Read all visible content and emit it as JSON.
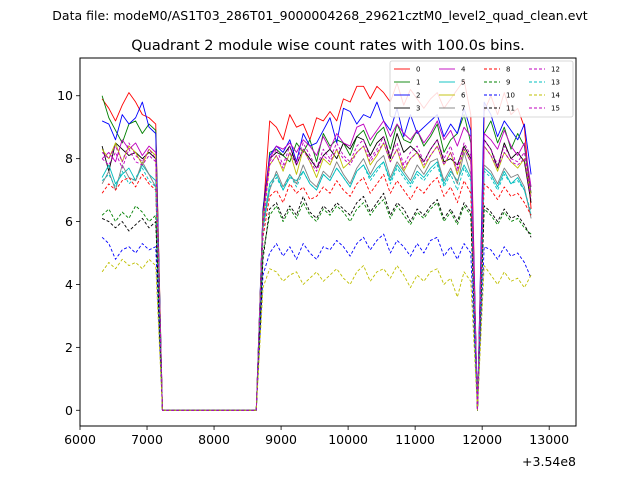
{
  "chart_data": {
    "type": "line",
    "suptitle": "Data file: modeM0/AS1T03_286T01_9000004268_29621cztM0_level2_quad_clean.evt",
    "title": "Quadrant 2 module wise count rates with 100.0s bins.",
    "xlabel": "",
    "ylabel": "",
    "x_offset_label": "+3.54e8",
    "xlim": [
      6000,
      13400
    ],
    "ylim": [
      -0.5,
      11.2
    ],
    "xticks": [
      6000,
      7000,
      8000,
      9000,
      10000,
      11000,
      12000,
      13000
    ],
    "yticks": [
      0,
      2,
      4,
      6,
      8,
      10
    ],
    "xtick_labels": [
      "6000",
      "7000",
      "8000",
      "9000",
      "10000",
      "11000",
      "12000",
      "13000"
    ],
    "ytick_labels": [
      "0",
      "2",
      "4",
      "6",
      "8",
      "10"
    ],
    "legend_placement": "top-right",
    "legend_columns": 4,
    "grid": false,
    "x_start": 6330,
    "x_step": 100,
    "series": [
      {
        "name": "0",
        "color": "#ff0000",
        "style": "solid",
        "values": [
          9.9,
          9.6,
          9.2,
          9.7,
          10.1,
          9.8,
          9.4,
          9.3,
          9.1,
          0,
          0,
          0,
          0,
          0,
          0,
          0,
          0,
          0,
          0,
          0,
          0,
          0,
          0,
          0,
          6.2,
          9.2,
          9.0,
          8.6,
          9.4,
          9.0,
          9.1,
          8.6,
          9.3,
          9.2,
          9.5,
          9.2,
          9.9,
          9.8,
          10.3,
          10.3,
          9.9,
          10.3,
          10.1,
          9.8,
          10.4,
          9.7,
          10.2,
          9.9,
          9.6,
          9.9,
          10.1,
          9.6,
          9.9,
          10.2,
          10.5,
          9.4,
          0,
          9.5,
          10.0,
          9.4,
          10.1,
          9.4,
          9.6,
          9.0,
          6.4
        ]
      },
      {
        "name": "1",
        "color": "#008000",
        "style": "solid",
        "values": [
          10.0,
          9.3,
          8.9,
          8.5,
          9.1,
          9.2,
          8.8,
          9.1,
          8.9,
          0,
          0,
          0,
          0,
          0,
          0,
          0,
          0,
          0,
          0,
          0,
          0,
          0,
          0,
          0,
          6.0,
          8.2,
          8.3,
          8.1,
          7.9,
          8.5,
          8.2,
          8.6,
          7.9,
          8.8,
          8.4,
          8.6,
          8.5,
          8.1,
          8.7,
          8.9,
          8.4,
          8.8,
          9.0,
          8.3,
          9.1,
          8.6,
          8.5,
          8.9,
          8.4,
          8.7,
          9.1,
          8.2,
          8.6,
          8.8,
          9.4,
          8.5,
          0,
          8.8,
          9.2,
          8.5,
          9.0,
          8.3,
          8.8,
          8.4,
          6.9
        ]
      },
      {
        "name": "2",
        "color": "#0000ff",
        "style": "solid",
        "values": [
          9.2,
          9.1,
          8.6,
          9.4,
          9.1,
          9.3,
          9.8,
          9.0,
          8.8,
          0,
          0,
          0,
          0,
          0,
          0,
          0,
          0,
          0,
          0,
          0,
          0,
          0,
          0,
          0,
          6.4,
          8.1,
          8.4,
          8.2,
          8.6,
          7.9,
          8.8,
          8.4,
          8.5,
          8.9,
          9.3,
          8.5,
          9.6,
          9.5,
          9.1,
          9.4,
          9.3,
          9.8,
          9.2,
          8.9,
          9.6,
          8.7,
          9.4,
          8.8,
          9.0,
          9.2,
          9.4,
          8.7,
          9.1,
          8.8,
          9.6,
          8.9,
          0,
          9.8,
          9.4,
          8.7,
          9.2,
          8.9,
          8.6,
          9.1,
          7.5
        ]
      },
      {
        "name": "3",
        "color": "#000000",
        "style": "solid",
        "values": [
          8.4,
          7.6,
          8.5,
          8.3,
          8.1,
          8.2,
          8.0,
          8.2,
          8.0,
          0,
          0,
          0,
          0,
          0,
          0,
          0,
          0,
          0,
          0,
          0,
          0,
          0,
          0,
          0,
          6.3,
          8.0,
          8.2,
          8.1,
          8.4,
          7.8,
          8.3,
          8.0,
          7.7,
          8.1,
          8.3,
          8.0,
          8.5,
          8.3,
          8.7,
          8.6,
          8.1,
          8.5,
          8.7,
          8.0,
          8.8,
          8.2,
          8.4,
          8.2,
          7.9,
          8.3,
          8.6,
          7.9,
          8.0,
          7.8,
          8.4,
          8.0,
          0,
          8.6,
          8.3,
          7.7,
          8.5,
          8.0,
          8.2,
          7.9,
          6.6
        ]
      },
      {
        "name": "4",
        "color": "#bf00bf",
        "style": "solid",
        "values": [
          8.0,
          8.2,
          7.9,
          8.6,
          8.3,
          8.5,
          8.1,
          8.4,
          8.2,
          0,
          0,
          0,
          0,
          0,
          0,
          0,
          0,
          0,
          0,
          0,
          0,
          0,
          0,
          0,
          6.2,
          8.0,
          8.4,
          8.3,
          8.5,
          8.2,
          8.6,
          8.4,
          8.1,
          8.7,
          8.3,
          8.8,
          8.5,
          8.4,
          9.0,
          9.1,
          8.6,
          8.9,
          9.2,
          8.7,
          9.1,
          8.8,
          8.6,
          8.9,
          8.5,
          8.8,
          9.2,
          8.6,
          8.9,
          8.4,
          9.0,
          8.7,
          0,
          8.8,
          8.6,
          8.3,
          8.9,
          8.4,
          8.1,
          8.5,
          7.1
        ]
      },
      {
        "name": "5",
        "color": "#00bfbf",
        "style": "solid",
        "values": [
          7.4,
          7.8,
          7.2,
          7.5,
          7.7,
          7.3,
          7.8,
          7.5,
          7.3,
          0,
          0,
          0,
          0,
          0,
          0,
          0,
          0,
          0,
          0,
          0,
          0,
          0,
          0,
          0,
          5.9,
          7.2,
          7.5,
          7.0,
          7.4,
          7.3,
          7.6,
          7.2,
          7.0,
          7.5,
          7.3,
          7.7,
          7.4,
          7.1,
          7.6,
          7.8,
          7.4,
          7.7,
          7.9,
          7.3,
          7.8,
          7.5,
          7.2,
          7.6,
          7.4,
          7.7,
          7.9,
          7.2,
          7.6,
          7.3,
          7.8,
          7.4,
          0,
          7.7,
          7.5,
          7.1,
          7.6,
          7.2,
          7.4,
          7.0,
          6.2
        ]
      },
      {
        "name": "6",
        "color": "#bfbf00",
        "style": "solid",
        "values": [
          8.3,
          8.0,
          8.5,
          7.9,
          8.4,
          8.2,
          7.8,
          8.3,
          8.1,
          0,
          0,
          0,
          0,
          0,
          0,
          0,
          0,
          0,
          0,
          0,
          0,
          0,
          0,
          0,
          6.1,
          7.8,
          8.1,
          7.6,
          8.2,
          7.5,
          8.3,
          7.9,
          7.4,
          8.0,
          7.8,
          8.3,
          7.7,
          7.9,
          8.2,
          8.4,
          7.8,
          8.1,
          8.5,
          7.9,
          8.3,
          7.6,
          8.0,
          8.2,
          7.7,
          8.1,
          8.4,
          7.8,
          8.2,
          7.5,
          8.3,
          7.9,
          0,
          8.4,
          8.1,
          7.6,
          8.2,
          7.9,
          7.7,
          8.0,
          6.8
        ]
      },
      {
        "name": "7",
        "color": "#808080",
        "style": "solid",
        "values": [
          7.2,
          7.6,
          7.0,
          7.8,
          7.4,
          7.3,
          7.9,
          7.5,
          7.1,
          0,
          0,
          0,
          0,
          0,
          0,
          0,
          0,
          0,
          0,
          0,
          0,
          0,
          0,
          0,
          5.8,
          7.0,
          7.6,
          7.1,
          7.5,
          7.2,
          7.8,
          7.3,
          7.1,
          7.6,
          7.4,
          7.9,
          7.5,
          7.2,
          7.7,
          8.0,
          7.5,
          7.9,
          8.1,
          7.4,
          7.9,
          7.6,
          7.3,
          7.8,
          7.5,
          7.9,
          8.0,
          7.3,
          7.7,
          7.2,
          8.2,
          7.5,
          0,
          7.8,
          7.6,
          7.2,
          7.7,
          7.4,
          7.5,
          7.1,
          6.1
        ]
      },
      {
        "name": "8",
        "color": "#ff0000",
        "style": "dashed",
        "values": [
          6.9,
          7.2,
          7.0,
          7.3,
          7.4,
          7.1,
          7.5,
          7.2,
          7.0,
          0,
          0,
          0,
          0,
          0,
          0,
          0,
          0,
          0,
          0,
          0,
          0,
          0,
          0,
          0,
          5.5,
          6.8,
          7.0,
          6.6,
          7.2,
          6.9,
          7.1,
          6.7,
          6.8,
          7.1,
          6.9,
          7.3,
          7.0,
          6.8,
          7.2,
          7.4,
          6.9,
          7.2,
          7.5,
          6.9,
          7.3,
          7.0,
          6.7,
          7.1,
          6.9,
          7.2,
          7.4,
          6.8,
          7.1,
          6.6,
          7.3,
          6.9,
          0,
          7.2,
          7.0,
          6.7,
          7.1,
          6.8,
          6.9,
          6.6,
          6.2
        ]
      },
      {
        "name": "9",
        "color": "#008000",
        "style": "dashed",
        "values": [
          6.2,
          6.4,
          6.0,
          6.3,
          6.1,
          6.5,
          6.3,
          6.0,
          6.2,
          0,
          0,
          0,
          0,
          0,
          0,
          0,
          0,
          0,
          0,
          0,
          0,
          0,
          0,
          0,
          5.0,
          6.2,
          6.5,
          6.0,
          6.4,
          6.1,
          6.6,
          6.2,
          6.0,
          6.4,
          6.2,
          6.5,
          6.3,
          6.0,
          6.4,
          6.6,
          6.2,
          6.5,
          6.7,
          6.1,
          6.5,
          6.2,
          5.9,
          6.3,
          6.1,
          6.4,
          6.6,
          6.0,
          6.3,
          5.9,
          6.5,
          6.2,
          0,
          6.4,
          6.2,
          5.9,
          6.3,
          6.0,
          6.1,
          5.8,
          5.6
        ]
      },
      {
        "name": "10",
        "color": "#0000ff",
        "style": "dashed",
        "values": [
          5.5,
          5.3,
          4.8,
          5.1,
          5.2,
          5.0,
          5.3,
          5.1,
          5.2,
          0,
          0,
          0,
          0,
          0,
          0,
          0,
          0,
          0,
          0,
          0,
          0,
          0,
          0,
          0,
          4.3,
          5.0,
          5.3,
          4.9,
          5.2,
          4.8,
          5.3,
          5.0,
          4.8,
          5.2,
          5.1,
          5.4,
          5.2,
          4.9,
          5.3,
          5.5,
          5.1,
          5.4,
          5.6,
          5.0,
          5.4,
          5.2,
          4.9,
          5.3,
          5.0,
          5.4,
          5.5,
          4.9,
          5.2,
          4.8,
          5.3,
          5.0,
          0,
          5.2,
          5.1,
          4.8,
          5.2,
          4.9,
          5.0,
          4.7,
          4.2
        ]
      },
      {
        "name": "11",
        "color": "#000000",
        "style": "dashed",
        "values": [
          6.1,
          6.0,
          5.8,
          6.0,
          5.7,
          5.9,
          6.1,
          5.8,
          6.0,
          0,
          0,
          0,
          0,
          0,
          0,
          0,
          0,
          0,
          0,
          0,
          0,
          0,
          0,
          0,
          4.8,
          6.4,
          6.6,
          6.1,
          6.5,
          6.2,
          6.8,
          6.3,
          6.1,
          6.5,
          6.3,
          6.6,
          6.4,
          6.2,
          6.6,
          6.8,
          6.3,
          6.6,
          6.9,
          6.2,
          6.6,
          6.4,
          6.0,
          6.4,
          6.2,
          6.5,
          6.7,
          6.1,
          6.4,
          6.0,
          6.6,
          6.3,
          0,
          6.5,
          6.3,
          6.0,
          6.4,
          6.1,
          6.2,
          5.9,
          5.5
        ]
      },
      {
        "name": "12",
        "color": "#bf00bf",
        "style": "dashed",
        "values": [
          8.2,
          8.0,
          8.4,
          7.9,
          8.5,
          8.1,
          7.9,
          8.3,
          8.0,
          0,
          0,
          0,
          0,
          0,
          0,
          0,
          0,
          0,
          0,
          0,
          0,
          0,
          0,
          0,
          6.0,
          7.9,
          8.3,
          7.8,
          8.4,
          7.9,
          8.5,
          8.1,
          7.7,
          8.3,
          8.0,
          8.5,
          8.1,
          7.9,
          8.4,
          8.6,
          8.0,
          8.3,
          8.7,
          8.1,
          8.5,
          7.8,
          8.2,
          8.4,
          7.9,
          8.3,
          8.6,
          8.0,
          8.4,
          7.7,
          8.5,
          8.1,
          0,
          8.6,
          8.3,
          7.8,
          8.4,
          8.0,
          7.9,
          8.2,
          6.9
        ]
      },
      {
        "name": "13",
        "color": "#00bfbf",
        "style": "dashed",
        "values": [
          7.3,
          7.5,
          7.1,
          7.6,
          7.2,
          7.4,
          7.7,
          7.3,
          7.1,
          0,
          0,
          0,
          0,
          0,
          0,
          0,
          0,
          0,
          0,
          0,
          0,
          0,
          0,
          0,
          5.7,
          7.1,
          7.4,
          7.0,
          7.5,
          7.1,
          7.6,
          7.2,
          7.0,
          7.5,
          7.3,
          7.7,
          7.4,
          7.1,
          7.6,
          7.8,
          7.3,
          7.6,
          7.9,
          7.2,
          7.7,
          7.4,
          7.1,
          7.5,
          7.3,
          7.6,
          7.8,
          7.1,
          7.5,
          7.0,
          7.7,
          7.3,
          0,
          7.6,
          7.4,
          7.0,
          7.5,
          7.2,
          7.3,
          7.0,
          6.3
        ]
      },
      {
        "name": "14",
        "color": "#bfbf00",
        "style": "dashed",
        "values": [
          4.4,
          4.7,
          4.5,
          4.8,
          4.6,
          4.7,
          4.5,
          4.8,
          4.6,
          0,
          0,
          0,
          0,
          0,
          0,
          0,
          0,
          0,
          0,
          0,
          0,
          0,
          0,
          0,
          3.9,
          4.5,
          4.4,
          4.1,
          4.3,
          4.4,
          4.0,
          4.2,
          4.4,
          4.1,
          4.3,
          4.5,
          4.2,
          4.0,
          4.4,
          4.6,
          4.1,
          4.4,
          4.5,
          4.2,
          4.6,
          4.3,
          3.9,
          4.3,
          4.1,
          4.4,
          4.5,
          4.0,
          4.2,
          3.6,
          4.4,
          4.1,
          0,
          4.6,
          4.3,
          4.0,
          4.4,
          4.1,
          4.2,
          3.9,
          4.3
        ]
      },
      {
        "name": "15",
        "color": "#bf00bf",
        "style": "dashed",
        "values": [
          8.0,
          7.8,
          8.2,
          7.7,
          8.3,
          7.9,
          7.8,
          8.1,
          7.9,
          0,
          0,
          0,
          0,
          0,
          0,
          0,
          0,
          0,
          0,
          0,
          0,
          0,
          0,
          0,
          5.9,
          7.8,
          8.1,
          7.7,
          8.2,
          7.8,
          8.3,
          7.9,
          7.6,
          8.1,
          7.9,
          8.3,
          8.0,
          7.8,
          8.2,
          8.4,
          7.9,
          8.2,
          8.5,
          7.9,
          8.3,
          7.7,
          8.0,
          8.2,
          7.8,
          8.1,
          8.4,
          7.8,
          8.2,
          7.6,
          8.3,
          7.9,
          0,
          8.4,
          8.1,
          7.7,
          8.2,
          7.9,
          7.8,
          8.0,
          6.7
        ]
      }
    ]
  }
}
